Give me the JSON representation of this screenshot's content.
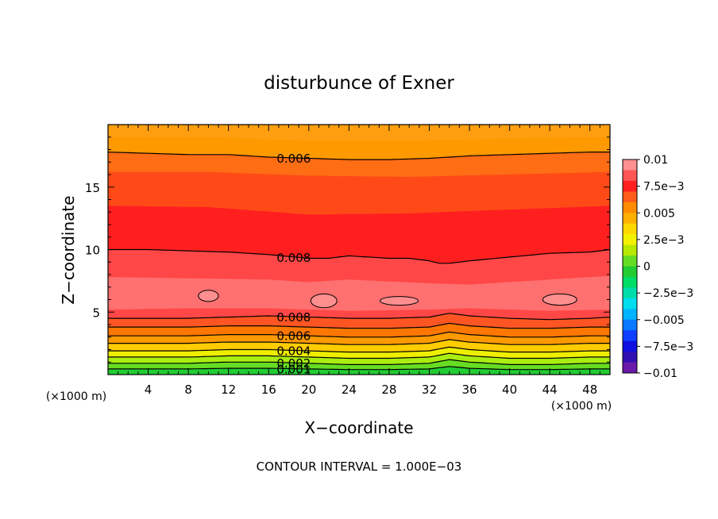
{
  "chart_data": {
    "type": "heatmap",
    "title": "disturbunce of Exner",
    "xlabel": "X−coordinate",
    "ylabel": "Z−coordinate",
    "x_unit": "(×1000 m)",
    "y_unit": "(×1000 m)",
    "xlim": [
      0,
      50
    ],
    "ylim": [
      0,
      20
    ],
    "x_ticks": [
      4,
      8,
      12,
      16,
      20,
      24,
      28,
      32,
      36,
      40,
      44,
      48
    ],
    "y_ticks": [
      5,
      10,
      15
    ],
    "footer": "CONTOUR INTERVAL = 1.000E−03",
    "colorbar": {
      "min": -0.01,
      "max": 0.01,
      "labels": [
        "0.01",
        "7.5e−3",
        "0.005",
        "2.5e−3",
        "0",
        "−2.5e−3",
        "−0.005",
        "−7.5e−3",
        "−0.01"
      ],
      "label_values": [
        0.01,
        0.0075,
        0.005,
        0.0025,
        0,
        -0.0025,
        -0.005,
        -0.0075,
        -0.01
      ]
    },
    "contours": [
      {
        "level": 0.006,
        "label": "0.006",
        "x": [
          0,
          4,
          8,
          12,
          16,
          20,
          24,
          28,
          32,
          36,
          40,
          44,
          48,
          50
        ],
        "z": [
          17.8,
          17.7,
          17.6,
          17.6,
          17.4,
          17.3,
          17.2,
          17.2,
          17.3,
          17.5,
          17.6,
          17.7,
          17.8,
          17.8
        ]
      },
      {
        "level": 0.008,
        "label": "0.008",
        "x": [
          0,
          4,
          8,
          12,
          16,
          20,
          22,
          24,
          26,
          28,
          30,
          32,
          33,
          34,
          36,
          40,
          44,
          48,
          50
        ],
        "z": [
          10.0,
          10.0,
          9.9,
          9.8,
          9.6,
          9.3,
          9.3,
          9.5,
          9.4,
          9.3,
          9.3,
          9.1,
          8.9,
          8.9,
          9.1,
          9.4,
          9.7,
          9.8,
          10.0
        ]
      },
      {
        "level": 0.008,
        "label": "0.008",
        "x": [
          0,
          4,
          8,
          12,
          16,
          20,
          24,
          28,
          32,
          34,
          36,
          40,
          44,
          48,
          50
        ],
        "z": [
          4.5,
          4.5,
          4.5,
          4.6,
          4.7,
          4.6,
          4.5,
          4.5,
          4.6,
          4.9,
          4.7,
          4.5,
          4.4,
          4.5,
          4.6
        ]
      },
      {
        "level": 0.007,
        "label": "",
        "x": [
          0,
          4,
          8,
          12,
          16,
          20,
          24,
          28,
          32,
          34,
          36,
          40,
          44,
          48,
          50
        ],
        "z": [
          3.8,
          3.8,
          3.8,
          3.9,
          3.9,
          3.8,
          3.7,
          3.7,
          3.8,
          4.1,
          3.9,
          3.7,
          3.7,
          3.8,
          3.8
        ]
      },
      {
        "level": 0.006,
        "label": "0.006",
        "x": [
          0,
          4,
          8,
          12,
          16,
          20,
          24,
          28,
          32,
          34,
          36,
          40,
          44,
          48,
          50
        ],
        "z": [
          3.1,
          3.1,
          3.1,
          3.2,
          3.2,
          3.1,
          3.0,
          3.0,
          3.1,
          3.4,
          3.2,
          3.0,
          3.0,
          3.1,
          3.1
        ]
      },
      {
        "level": 0.005,
        "label": "",
        "x": [
          0,
          4,
          8,
          12,
          16,
          20,
          24,
          28,
          32,
          34,
          36,
          40,
          44,
          48,
          50
        ],
        "z": [
          2.5,
          2.5,
          2.5,
          2.6,
          2.6,
          2.5,
          2.4,
          2.4,
          2.5,
          2.8,
          2.6,
          2.4,
          2.4,
          2.5,
          2.5
        ]
      },
      {
        "level": 0.004,
        "label": "0.004",
        "x": [
          0,
          4,
          8,
          12,
          16,
          20,
          24,
          28,
          32,
          34,
          36,
          40,
          44,
          48,
          50
        ],
        "z": [
          1.9,
          1.9,
          1.9,
          2.0,
          2.0,
          1.9,
          1.8,
          1.8,
          1.9,
          2.2,
          2.0,
          1.8,
          1.8,
          1.9,
          1.9
        ]
      },
      {
        "level": 0.003,
        "label": "",
        "x": [
          0,
          4,
          8,
          12,
          16,
          20,
          24,
          28,
          32,
          34,
          36,
          40,
          44,
          48,
          50
        ],
        "z": [
          1.4,
          1.4,
          1.4,
          1.5,
          1.5,
          1.4,
          1.3,
          1.3,
          1.4,
          1.7,
          1.5,
          1.3,
          1.3,
          1.4,
          1.4
        ]
      },
      {
        "level": 0.002,
        "label": "0.002",
        "x": [
          0,
          4,
          8,
          12,
          16,
          20,
          24,
          28,
          32,
          34,
          36,
          40,
          44,
          48,
          50
        ],
        "z": [
          0.9,
          0.9,
          0.9,
          1.0,
          1.0,
          0.9,
          0.8,
          0.8,
          0.9,
          1.2,
          1.0,
          0.8,
          0.8,
          0.9,
          0.9
        ]
      },
      {
        "level": 0.001,
        "label": "0.001",
        "x": [
          0,
          4,
          8,
          12,
          16,
          20,
          24,
          28,
          32,
          34,
          36,
          40,
          44,
          48,
          50
        ],
        "z": [
          0.45,
          0.45,
          0.45,
          0.5,
          0.5,
          0.45,
          0.4,
          0.4,
          0.45,
          0.65,
          0.5,
          0.4,
          0.4,
          0.45,
          0.45
        ]
      }
    ],
    "closed_contours_level": 0.009,
    "closed_contours": [
      {
        "cx": 10,
        "cz": 6.3,
        "rx": 1.0,
        "rz": 0.45
      },
      {
        "cx": 21.5,
        "cz": 5.9,
        "rx": 1.3,
        "rz": 0.55
      },
      {
        "cx": 29,
        "cz": 5.9,
        "rx": 1.9,
        "rz": 0.35
      },
      {
        "cx": 45,
        "cz": 6.0,
        "rx": 1.7,
        "rz": 0.45
      }
    ],
    "fill_levels": [
      0.001,
      0.002,
      0.003,
      0.004,
      0.005,
      0.006,
      0.007,
      0.008,
      0.009
    ],
    "fill_colors": [
      "#22cc33",
      "#66dd22",
      "#aaee11",
      "#eeee00",
      "#ffcc00",
      "#ff9900",
      "#ff7700",
      "#ff5522",
      "#ff1f1f",
      "#ff4747",
      "#ff7070"
    ]
  }
}
